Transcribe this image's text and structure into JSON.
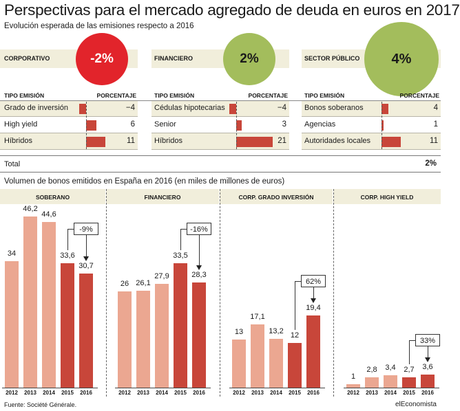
{
  "title": "Perspectivas para el mercado agregado de deuda en euros en 2017",
  "subtitle": "Evolución esperada de las emisiones respecto a 2016",
  "colors": {
    "band": "#f1eedb",
    "bar_dark": "#c8463a",
    "bar_light": "#eba791",
    "circle_negative": "#e2242b",
    "circle_positive": "#a3bd5c"
  },
  "sectors": [
    {
      "label": "CORPORATIVO",
      "change": "-2%",
      "change_value": -2,
      "col_type": "TIPO EMISIÓN",
      "col_pct": "PORCENTAJE",
      "rows": [
        {
          "label": "Grado de inversión",
          "value_text": "−4",
          "value": -4
        },
        {
          "label": "High yield",
          "value_text": "6",
          "value": 6
        },
        {
          "label": "Híbridos",
          "value_text": "11",
          "value": 11
        }
      ]
    },
    {
      "label": "FINANCIERO",
      "change": "2%",
      "change_value": 2,
      "col_type": "TIPO EMISIÓN",
      "col_pct": "PORCENTAJE",
      "rows": [
        {
          "label": "Cédulas hipotecarias",
          "value_text": "−4",
          "value": -4
        },
        {
          "label": "Senior",
          "value_text": "3",
          "value": 3
        },
        {
          "label": "Híbridos",
          "value_text": "21",
          "value": 21
        }
      ]
    },
    {
      "label": "SECTOR PÚBLICO",
      "change": "4%",
      "change_value": 4,
      "col_type": "TIPO EMISIÓN",
      "col_pct": "PORCENTAJE",
      "rows": [
        {
          "label": "Bonos soberanos",
          "value_text": "4",
          "value": 4
        },
        {
          "label": "Agencias",
          "value_text": "1",
          "value": 1
        },
        {
          "label": "Autoridades locales",
          "value_text": "11",
          "value": 11
        }
      ]
    }
  ],
  "total": {
    "label": "Total",
    "value": "2%"
  },
  "chart_data": {
    "type": "bar",
    "title": "Volumen de bonos emitidos en España en 2016 (en miles de millones de euros)",
    "categories": [
      "2012",
      "2013",
      "2014",
      "2015",
      "2016"
    ],
    "ylim": [
      0,
      50
    ],
    "panels": [
      {
        "name": "SOBERANO",
        "values": [
          34,
          46.2,
          44.6,
          33.6,
          30.7
        ],
        "labels": [
          "34",
          "46,2",
          "44,6",
          "33,6",
          "30,7"
        ],
        "change": "-9%"
      },
      {
        "name": "FINANCIERO",
        "values": [
          26,
          26.1,
          27.9,
          33.5,
          28.3
        ],
        "labels": [
          "26",
          "26,1",
          "27,9",
          "33,5",
          "28,3"
        ],
        "change": "-16%"
      },
      {
        "name": "CORP. GRADO INVERSIÓN",
        "values": [
          13,
          17.1,
          13.2,
          12,
          19.4
        ],
        "labels": [
          "13",
          "17,1",
          "13,2",
          "12",
          "19,4"
        ],
        "change": "62%"
      },
      {
        "name": "CORP. HIGH YIELD",
        "values": [
          1,
          2.8,
          3.4,
          2.7,
          3.6
        ],
        "labels": [
          "1",
          "2,8",
          "3,4",
          "2,7",
          "3,6"
        ],
        "change": "33%"
      }
    ]
  },
  "source": "Fuente: Société Générale.",
  "brand": "elEconomista"
}
